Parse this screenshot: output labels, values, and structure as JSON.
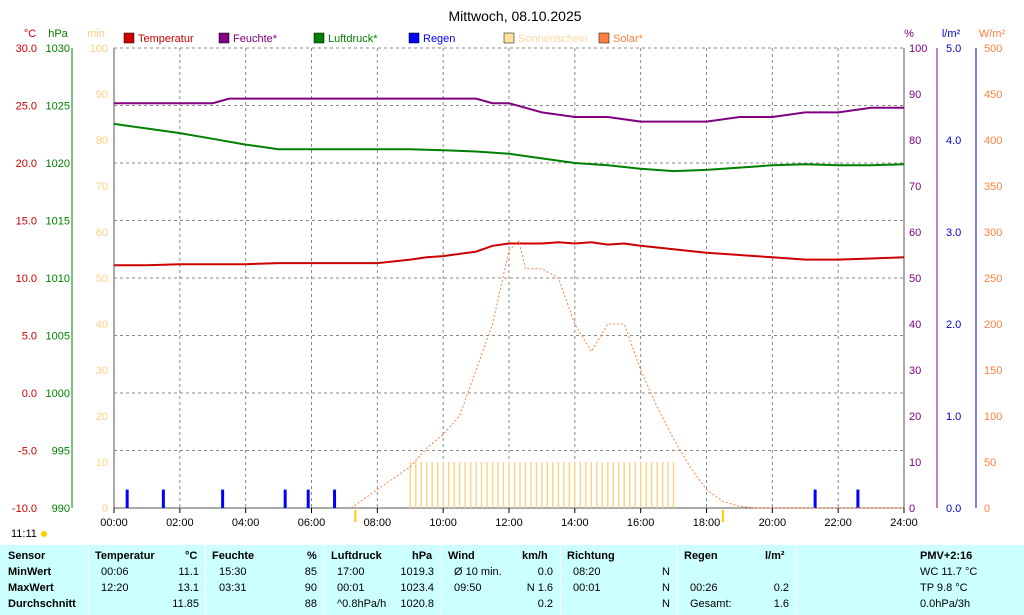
{
  "chart_data": {
    "type": "line",
    "title": "Mittwoch, 08.10.2025",
    "x_ticks": [
      "00:00",
      "02:00",
      "04:00",
      "06:00",
      "08:00",
      "10:00",
      "12:00",
      "14:00",
      "16:00",
      "18:00",
      "20:00",
      "22:00",
      "24:00"
    ],
    "axes": {
      "temperature": {
        "unit": "°C",
        "range": [
          -10,
          30
        ],
        "ticks": [
          "30.0",
          "25.0",
          "20.0",
          "15.0",
          "10.0",
          "5.0",
          "0.0",
          "-5.0",
          "-10.0"
        ],
        "color": "#cc0000"
      },
      "pressure": {
        "unit": "hPa",
        "range": [
          990,
          1030
        ],
        "ticks": [
          "1030",
          "1025",
          "1020",
          "1015",
          "1010",
          "1005",
          "1000",
          "995",
          "990"
        ],
        "color": "#008000"
      },
      "sunshine": {
        "unit": "min",
        "range": [
          0,
          100
        ],
        "ticks": [
          "100",
          "90",
          "80",
          "70",
          "60",
          "50",
          "40",
          "30",
          "20",
          "10",
          "0"
        ],
        "color": "#ffd080"
      },
      "humidity": {
        "unit": "%",
        "range": [
          0,
          100
        ],
        "ticks": [
          "100",
          "90",
          "80",
          "70",
          "60",
          "50",
          "40",
          "30",
          "20",
          "10",
          "0"
        ],
        "color": "#800080"
      },
      "rain": {
        "unit": "l/m²",
        "range": [
          0,
          5
        ],
        "ticks": [
          "5.0",
          "4.0",
          "3.0",
          "2.0",
          "1.0",
          "0.0"
        ],
        "color": "#0000cc"
      },
      "solar": {
        "unit": "W/m²",
        "range": [
          0,
          500
        ],
        "ticks": [
          "500",
          "450",
          "400",
          "350",
          "300",
          "250",
          "200",
          "150",
          "100",
          "50",
          "0"
        ],
        "color": "#ff8040"
      }
    },
    "legend": [
      {
        "name": "Temperatur",
        "color": "#cc0000"
      },
      {
        "name": "Feuchte*",
        "color": "#800080"
      },
      {
        "name": "Luftdruck*",
        "color": "#008000"
      },
      {
        "name": "Regen",
        "color": "#0000ff"
      },
      {
        "name": "Sonnenschein",
        "color": "#ffe0a0"
      },
      {
        "name": "Solar*",
        "color": "#ff8040"
      }
    ],
    "series": [
      {
        "name": "Temperatur",
        "axis": "temperature",
        "color": "#cc0000",
        "x": [
          0,
          1,
          2,
          3,
          4,
          5,
          6,
          7,
          8,
          9,
          9.5,
          10,
          11,
          11.5,
          12,
          13,
          13.5,
          14,
          14.5,
          15,
          15.5,
          16,
          17,
          18,
          19,
          20,
          21,
          22,
          23,
          24
        ],
        "y": [
          11.1,
          11.1,
          11.2,
          11.2,
          11.2,
          11.3,
          11.3,
          11.3,
          11.3,
          11.6,
          11.8,
          11.9,
          12.3,
          12.8,
          13.0,
          13.0,
          13.1,
          13.0,
          13.1,
          12.9,
          13.0,
          12.8,
          12.5,
          12.2,
          12.0,
          11.8,
          11.6,
          11.6,
          11.7,
          11.8
        ]
      },
      {
        "name": "Feuchte*",
        "axis": "humidity",
        "color": "#800080",
        "x": [
          0,
          3,
          3.5,
          4,
          5,
          6,
          7,
          8,
          9,
          10,
          11,
          11.5,
          12,
          12.5,
          13,
          14,
          15,
          16,
          17,
          18,
          19,
          20,
          21,
          22,
          23,
          24
        ],
        "y": [
          88,
          88,
          89,
          89,
          89,
          89,
          89,
          89,
          89,
          89,
          89,
          88,
          88,
          87,
          86,
          85,
          85,
          84,
          84,
          84,
          85,
          85,
          86,
          86,
          87,
          87
        ]
      },
      {
        "name": "Luftdruck*",
        "axis": "pressure",
        "color": "#008000",
        "x": [
          0,
          1,
          2,
          3,
          4,
          5,
          6,
          7,
          8,
          9,
          10,
          11,
          12,
          13,
          14,
          15,
          16,
          17,
          18,
          19,
          20,
          21,
          22,
          23,
          24
        ],
        "y": [
          1023.4,
          1023.0,
          1022.6,
          1022.1,
          1021.6,
          1021.2,
          1021.2,
          1021.2,
          1021.2,
          1021.2,
          1021.1,
          1021.0,
          1020.8,
          1020.4,
          1020.0,
          1019.8,
          1019.5,
          1019.3,
          1019.4,
          1019.6,
          1019.8,
          1019.9,
          1019.8,
          1019.8,
          1019.9
        ]
      },
      {
        "name": "Solar*",
        "axis": "solar",
        "color": "#ff8040",
        "style": "dotted",
        "x": [
          7.2,
          8,
          9,
          9.5,
          10,
          10.5,
          11,
          11.5,
          12,
          12.3,
          12.5,
          13,
          13.5,
          14,
          14.5,
          15,
          15.5,
          16,
          16.5,
          17,
          17.5,
          18,
          18.5,
          19,
          19.5,
          20,
          24
        ],
        "y": [
          0,
          20,
          45,
          65,
          80,
          100,
          150,
          200,
          280,
          290,
          260,
          260,
          250,
          200,
          170,
          200,
          200,
          150,
          110,
          75,
          45,
          20,
          7,
          2,
          0,
          0,
          0
        ]
      },
      {
        "name": "Sonnenschein",
        "axis": "sunshine",
        "color": "#ffd080",
        "type": "bar",
        "start": 9,
        "end": 17,
        "bar_value": 10
      },
      {
        "name": "Regen",
        "axis": "rain",
        "color": "#0000ff",
        "type": "bar",
        "x": [
          0.4,
          1.5,
          3.3,
          5.2,
          5.9,
          6.7,
          21.3,
          22.6
        ],
        "y": [
          0.2,
          0.2,
          0.2,
          0.2,
          0.2,
          0.2,
          0.2,
          0.2
        ]
      }
    ],
    "markers": [
      "07:20",
      "18:30"
    ]
  },
  "time_label": "11:11",
  "table": {
    "headers": {
      "sensor": "Sensor",
      "temp": "Temperatur",
      "temp_unit": "°C",
      "hum": "Feuchte",
      "hum_unit": "%",
      "press": "Luftdruck",
      "press_unit": "hPa",
      "wind": "Wind",
      "wind_unit": "km/h",
      "dir": "Richtung",
      "rain": "Regen",
      "rain_unit": "l/m²",
      "pmv": "PMV+2:16"
    },
    "rows": [
      {
        "label": "MinWert",
        "temp_time": "00:06",
        "temp_val": "11.1",
        "hum_time": "15:30",
        "hum_val": "85",
        "press_time": "17:00",
        "press_val": "1019.3",
        "wind_time": "Ø 10 min.",
        "wind_val": "0.0",
        "dir_time": "08:20",
        "dir_val": "N",
        "rain_time": "",
        "rain_val": "",
        "extra": "WC 11.7 °C"
      },
      {
        "label": "MaxWert",
        "temp_time": "12:20",
        "temp_val": "13.1",
        "hum_time": "03:31",
        "hum_val": "90",
        "press_time": "00:01",
        "press_val": "1023.4",
        "wind_time": "09:50",
        "wind_val": "N 1.6",
        "dir_time": "00:01",
        "dir_val": "N",
        "rain_time": "00:26",
        "rain_val": "0.2",
        "extra": "TP 9.8 °C"
      },
      {
        "label": "Durchschnitt",
        "temp_time": "",
        "temp_val": "11.85",
        "hum_time": "",
        "hum_val": "88",
        "press_time": "^0.8hPa/h",
        "press_val": "1020.8",
        "wind_time": "",
        "wind_val": "0.2",
        "dir_time": "",
        "dir_val": "N",
        "rain_time": "Gesamt:",
        "rain_val": "1.6",
        "extra": "0.0hPa/3h"
      }
    ]
  }
}
